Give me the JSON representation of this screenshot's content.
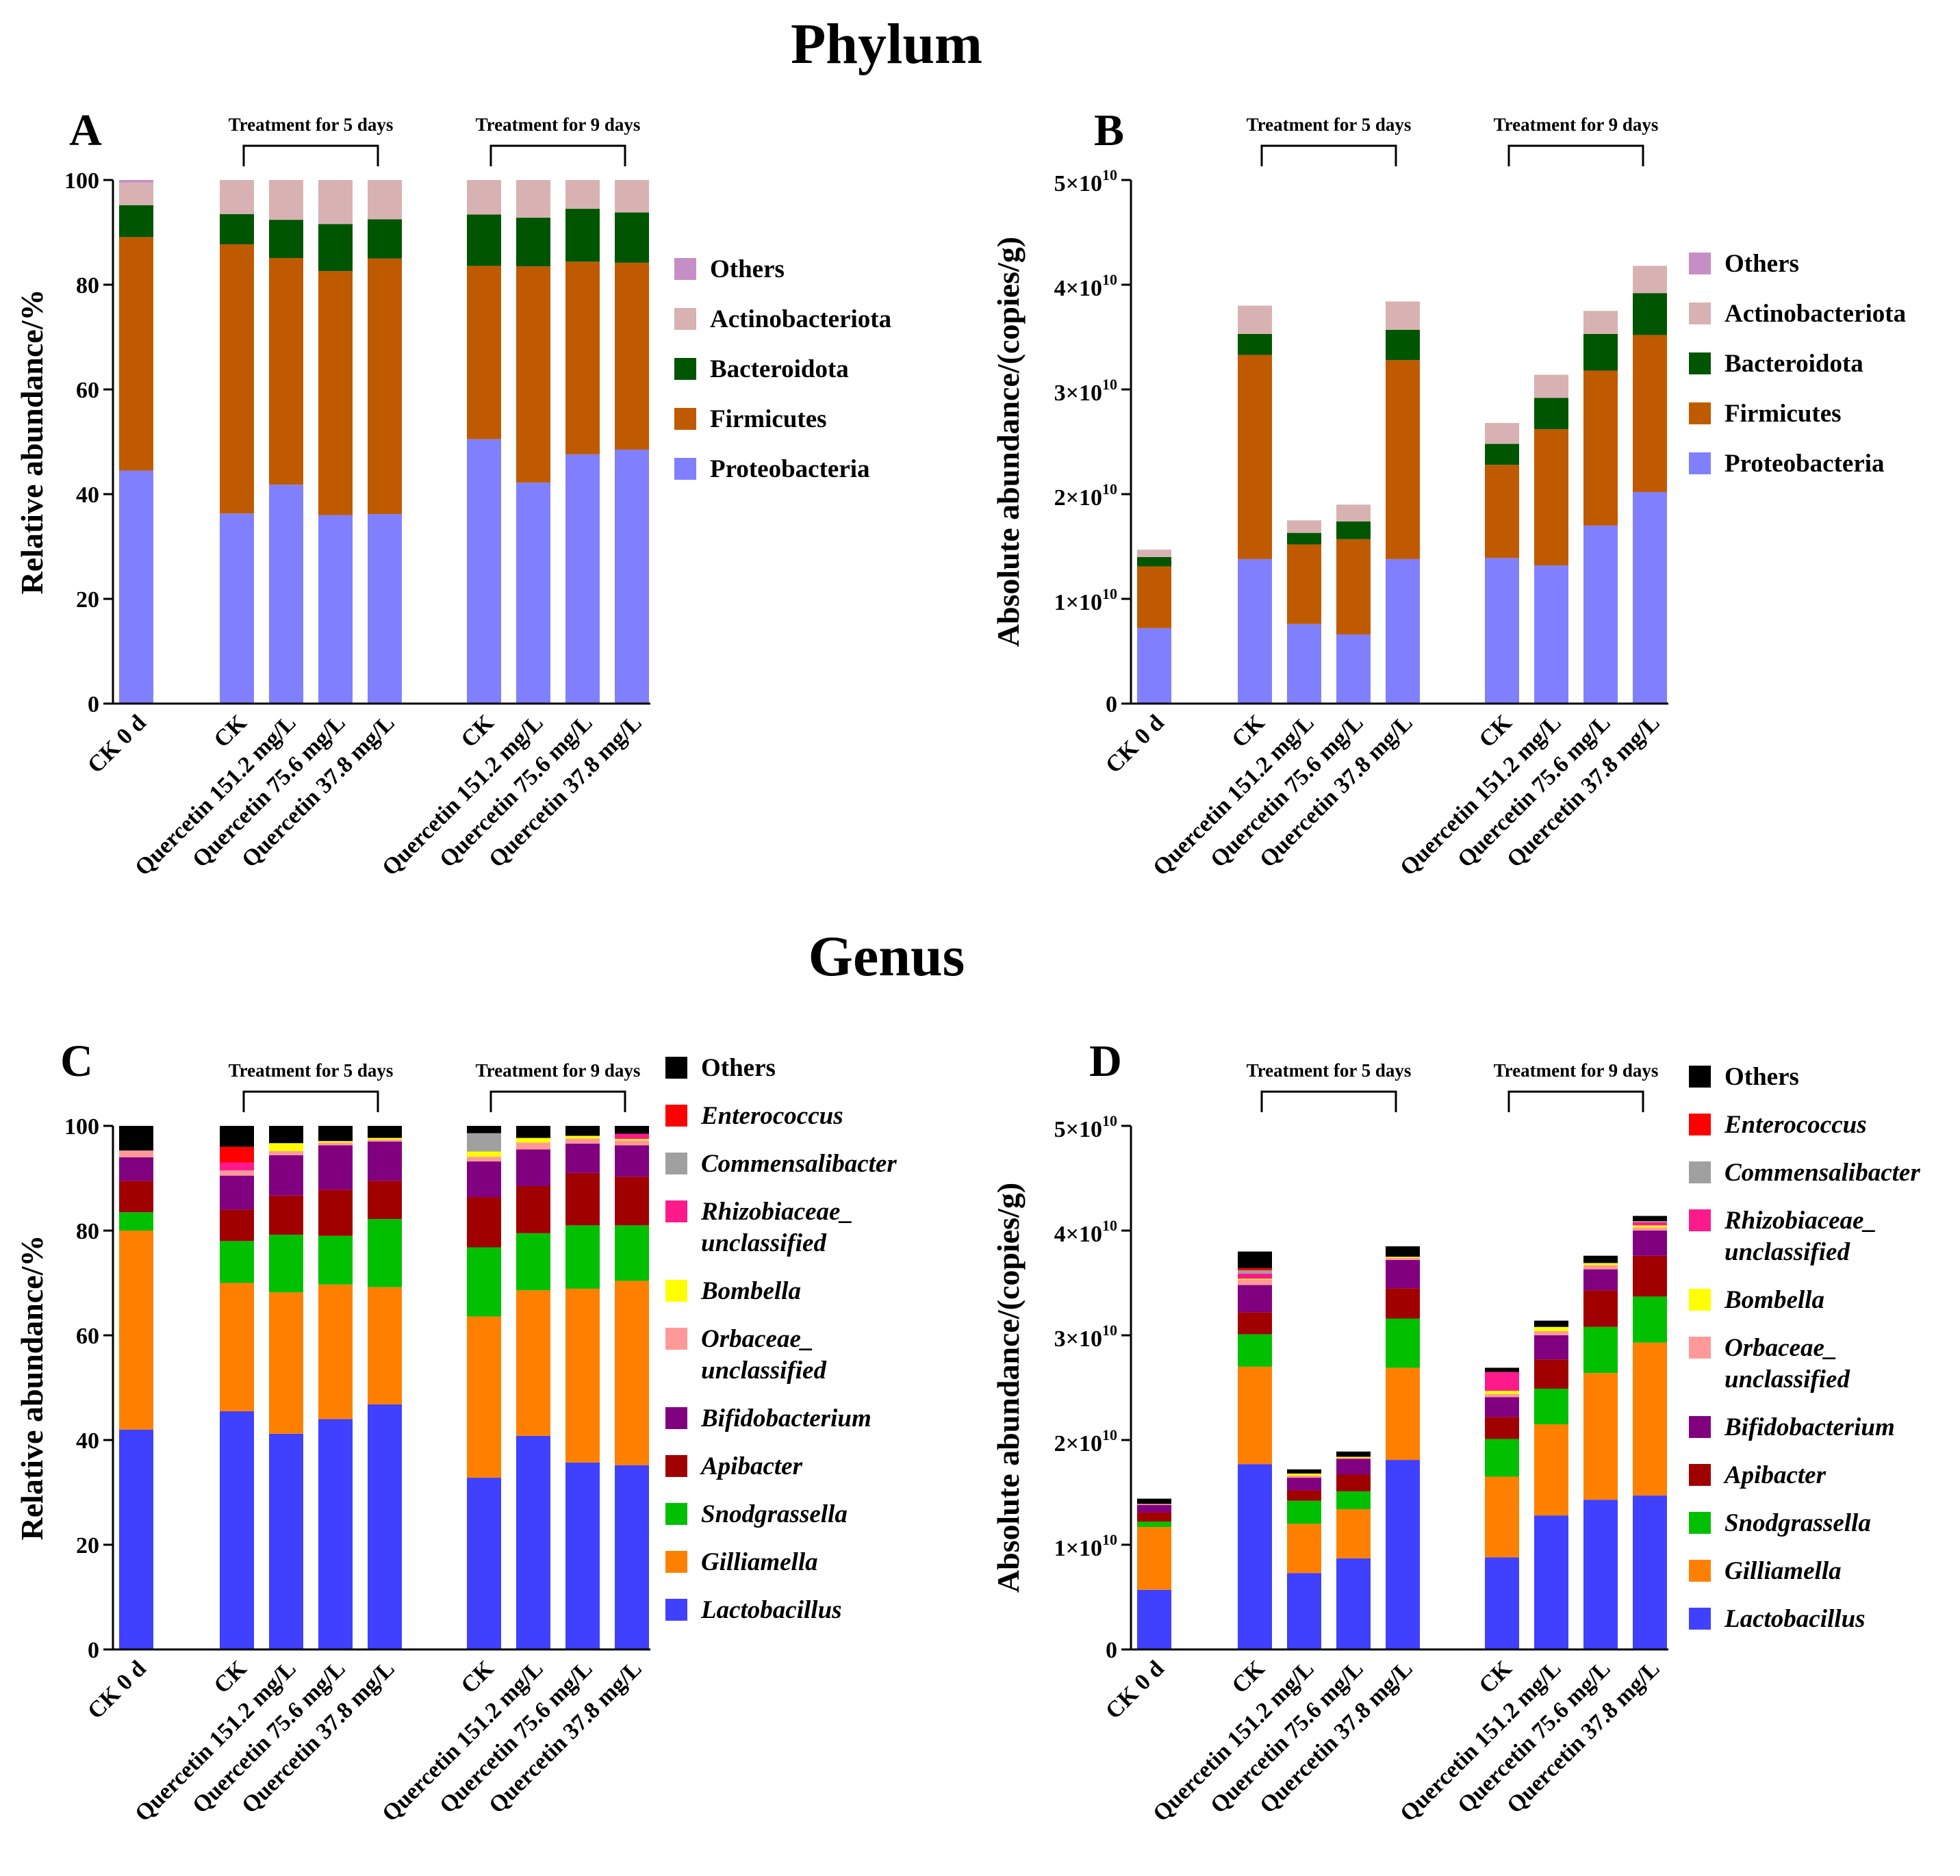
{
  "titles": {
    "phylum": "Phylum",
    "genus": "Genus"
  },
  "chart_data": [
    {
      "panel": "A",
      "type": "bar",
      "stacked": true,
      "ylabel": "Relative abundance/%",
      "ylim": [
        0,
        100
      ],
      "yticks": [
        "0",
        "20",
        "40",
        "60",
        "80",
        "100"
      ],
      "categories": [
        "CK 0 d",
        "CK",
        "Quercetin 151.2 mg/L",
        "Quercetin 75.6 mg/L",
        "Quercetin 37.8 mg/L",
        "CK",
        "Quercetin 151.2 mg/L",
        "Quercetin 75.6 mg/L",
        "Quercetin 37.8 mg/L"
      ],
      "groups": [
        {
          "label": "Treatment for 5 days",
          "from": 1,
          "to": 4
        },
        {
          "label": "Treatment for 9 days",
          "from": 5,
          "to": 8
        }
      ],
      "series": [
        {
          "name": "Proteobacteria",
          "italic": false,
          "color": "#8080ff",
          "values": [
            44.5,
            36.3,
            41.8,
            36,
            36.2,
            50.5,
            42.2,
            47.6,
            48.5
          ]
        },
        {
          "name": "Firmicutes",
          "italic": false,
          "color": "#c05a00",
          "values": [
            44.6,
            51.4,
            43.3,
            46.6,
            48.8,
            33.1,
            41.3,
            36.8,
            35.7
          ]
        },
        {
          "name": "Bacteroidota",
          "italic": false,
          "color": "#005500",
          "values": [
            6.1,
            5.8,
            7.3,
            9,
            7.5,
            9.8,
            9.3,
            10.1,
            9.6
          ]
        },
        {
          "name": "Actinobacteriota",
          "italic": false,
          "color": "#d8b2b2",
          "values": [
            4.3,
            6.5,
            7.6,
            8.4,
            7.5,
            6.6,
            7.2,
            5.5,
            6.2
          ]
        },
        {
          "name": "Others",
          "italic": false,
          "color": "#c58fc5",
          "values": [
            0.5,
            0,
            0,
            0,
            0,
            0,
            0,
            0,
            0
          ]
        }
      ]
    },
    {
      "panel": "B",
      "type": "bar",
      "stacked": true,
      "ylabel": "Absolute abundance/(copies/g)",
      "ylim": [
        0,
        5
      ],
      "yticks": [
        "0",
        "1×10",
        "2×10",
        "3×10",
        "4×10",
        "5×10"
      ],
      "ytick_exponent": "10",
      "categories": [
        "CK 0 d",
        "CK",
        "Quercetin 151.2 mg/L",
        "Quercetin 75.6 mg/L",
        "Quercetin 37.8 mg/L",
        "CK",
        "Quercetin 151.2 mg/L",
        "Quercetin 75.6 mg/L",
        "Quercetin 37.8 mg/L"
      ],
      "groups": [
        {
          "label": "Treatment for 5 days",
          "from": 1,
          "to": 4
        },
        {
          "label": "Treatment for 9 days",
          "from": 5,
          "to": 8
        }
      ],
      "series": [
        {
          "name": "Proteobacteria",
          "italic": false,
          "color": "#8080ff",
          "values": [
            0.72,
            1.38,
            0.76,
            0.66,
            1.38,
            1.39,
            1.32,
            1.7,
            2.02
          ]
        },
        {
          "name": "Firmicutes",
          "italic": false,
          "color": "#c05a00",
          "values": [
            0.59,
            1.95,
            0.76,
            0.91,
            1.9,
            0.89,
            1.3,
            1.48,
            1.5
          ]
        },
        {
          "name": "Bacteroidota",
          "italic": false,
          "color": "#005500",
          "values": [
            0.09,
            0.2,
            0.11,
            0.17,
            0.29,
            0.2,
            0.3,
            0.35,
            0.4
          ]
        },
        {
          "name": "Actinobacteriota",
          "italic": false,
          "color": "#d8b2b2",
          "values": [
            0.07,
            0.27,
            0.12,
            0.16,
            0.27,
            0.2,
            0.22,
            0.22,
            0.26
          ]
        },
        {
          "name": "Others",
          "italic": false,
          "color": "#c58fc5",
          "values": [
            0,
            0,
            0,
            0,
            0,
            0,
            0,
            0,
            0
          ]
        }
      ]
    },
    {
      "panel": "C",
      "type": "bar",
      "stacked": true,
      "ylabel": "Relative abundance/%",
      "ylim": [
        0,
        100
      ],
      "yticks": [
        "0",
        "20",
        "40",
        "60",
        "80",
        "100"
      ],
      "categories": [
        "CK 0 d",
        "CK",
        "Quercetin 151.2 mg/L",
        "Quercetin 75.6 mg/L",
        "Quercetin 37.8 mg/L",
        "CK",
        "Quercetin 151.2 mg/L",
        "Quercetin 75.6 mg/L",
        "Quercetin 37.8 mg/L"
      ],
      "groups": [
        {
          "label": "Treatment for 5 days",
          "from": 1,
          "to": 4
        },
        {
          "label": "Treatment for 9 days",
          "from": 5,
          "to": 8
        }
      ],
      "series": [
        {
          "name": "Lactobacillus",
          "italic": true,
          "color": "#4040ff",
          "values": [
            42,
            45.5,
            41.2,
            44,
            46.8,
            32.8,
            40.8,
            35.7,
            35.2
          ]
        },
        {
          "name": "Gilliamella",
          "italic": true,
          "color": "#ff8000",
          "values": [
            38,
            24.5,
            27,
            25.7,
            22.4,
            30.8,
            27.8,
            33.2,
            35.2
          ]
        },
        {
          "name": "Snodgrassella",
          "italic": true,
          "color": "#00c000",
          "values": [
            3.5,
            8,
            11,
            9.3,
            13,
            13.2,
            10.9,
            12.1,
            10.6
          ]
        },
        {
          "name": "Apibacter",
          "italic": true,
          "color": "#a00000",
          "values": [
            6,
            6,
            7.5,
            8.8,
            7.3,
            9.6,
            9,
            10,
            9.3
          ]
        },
        {
          "name": "Bifidobacterium",
          "italic": true,
          "color": "#800080",
          "values": [
            4.5,
            6.5,
            7.7,
            8.5,
            7.5,
            6.8,
            7,
            5.6,
            6
          ]
        },
        {
          "name": "Orbaceae_ unclassified",
          "italic": true,
          "color": "#ff9999",
          "values": [
            1.3,
            1,
            0.8,
            0.5,
            0.4,
            0.9,
            1.3,
            1,
            0.9
          ]
        },
        {
          "name": "Bombella",
          "italic": true,
          "color": "#ffff00",
          "values": [
            0,
            0,
            1.5,
            0.3,
            0.3,
            1,
            0.9,
            0.5,
            0.3
          ]
        },
        {
          "name": "Rhizobiaceae_ unclassified",
          "italic": true,
          "color": "#ff1a8c",
          "values": [
            0,
            1.5,
            0,
            0,
            0,
            0,
            0,
            0,
            1
          ]
        },
        {
          "name": "Commensalibacter",
          "italic": true,
          "color": "#a0a0a0",
          "values": [
            0,
            0,
            0,
            0,
            0,
            3.5,
            0,
            0,
            0
          ]
        },
        {
          "name": "Enterococcus",
          "italic": true,
          "color": "#ff0000",
          "values": [
            0,
            3,
            0,
            0,
            0,
            0,
            0,
            0,
            0
          ]
        },
        {
          "name": "Others",
          "italic": false,
          "color": "#000000",
          "values": [
            4.7,
            4,
            3.3,
            2.9,
            2.3,
            1.4,
            2.3,
            1.9,
            1.5
          ]
        }
      ]
    },
    {
      "panel": "D",
      "type": "bar",
      "stacked": true,
      "ylabel": "Absolute abundance/(copies/g)",
      "ylim": [
        0,
        5
      ],
      "yticks": [
        "0",
        "1×10",
        "2×10",
        "3×10",
        "4×10",
        "5×10"
      ],
      "ytick_exponent": "10",
      "categories": [
        "CK 0 d",
        "CK",
        "Quercetin 151.2 mg/L",
        "Quercetin 75.6 mg/L",
        "Quercetin 37.8 mg/L",
        "CK",
        "Quercetin 151.2 mg/L",
        "Quercetin 75.6 mg/L",
        "Quercetin 37.8 mg/L"
      ],
      "groups": [
        {
          "label": "Treatment for 5 days",
          "from": 1,
          "to": 4
        },
        {
          "label": "Treatment for 9 days",
          "from": 5,
          "to": 8
        }
      ],
      "series": [
        {
          "name": "Lactobacillus",
          "italic": true,
          "color": "#4040ff",
          "values": [
            0.57,
            1.77,
            0.73,
            0.87,
            1.81,
            0.88,
            1.28,
            1.43,
            1.47
          ]
        },
        {
          "name": "Gilliamella",
          "italic": true,
          "color": "#ff8000",
          "values": [
            0.6,
            0.93,
            0.47,
            0.47,
            0.88,
            0.77,
            0.87,
            1.21,
            1.46
          ]
        },
        {
          "name": "Snodgrassella",
          "italic": true,
          "color": "#00c000",
          "values": [
            0.05,
            0.31,
            0.22,
            0.17,
            0.47,
            0.36,
            0.34,
            0.44,
            0.44
          ]
        },
        {
          "name": "Apibacter",
          "italic": true,
          "color": "#a00000",
          "values": [
            0.09,
            0.21,
            0.1,
            0.16,
            0.29,
            0.21,
            0.28,
            0.35,
            0.39
          ]
        },
        {
          "name": "Bifidobacterium",
          "italic": true,
          "color": "#800080",
          "values": [
            0.07,
            0.26,
            0.12,
            0.15,
            0.27,
            0.19,
            0.23,
            0.2,
            0.24
          ]
        },
        {
          "name": "Orbaceae_ unclassified",
          "italic": true,
          "color": "#ff9999",
          "values": [
            0.01,
            0.05,
            0.02,
            0.01,
            0.02,
            0.03,
            0.04,
            0.04,
            0.03
          ]
        },
        {
          "name": "Bombella",
          "italic": true,
          "color": "#ffff00",
          "values": [
            0,
            0.01,
            0.02,
            0.01,
            0.01,
            0.03,
            0.04,
            0.02,
            0.02
          ]
        },
        {
          "name": "Rhizobiaceae_ unclassified",
          "italic": true,
          "color": "#ff1a8c",
          "values": [
            0,
            0.05,
            0,
            0,
            0,
            0.18,
            0,
            0,
            0.03
          ]
        },
        {
          "name": "Commensalibacter",
          "italic": true,
          "color": "#a0a0a0",
          "values": [
            0,
            0.03,
            0,
            0,
            0,
            0,
            0,
            0,
            0.01
          ]
        },
        {
          "name": "Enterococcus",
          "italic": true,
          "color": "#ff0000",
          "values": [
            0,
            0.02,
            0,
            0,
            0,
            0,
            0,
            0,
            0
          ]
        },
        {
          "name": "Others",
          "italic": false,
          "color": "#000000",
          "values": [
            0.05,
            0.16,
            0.04,
            0.05,
            0.1,
            0.04,
            0.06,
            0.07,
            0.05
          ]
        }
      ]
    }
  ]
}
